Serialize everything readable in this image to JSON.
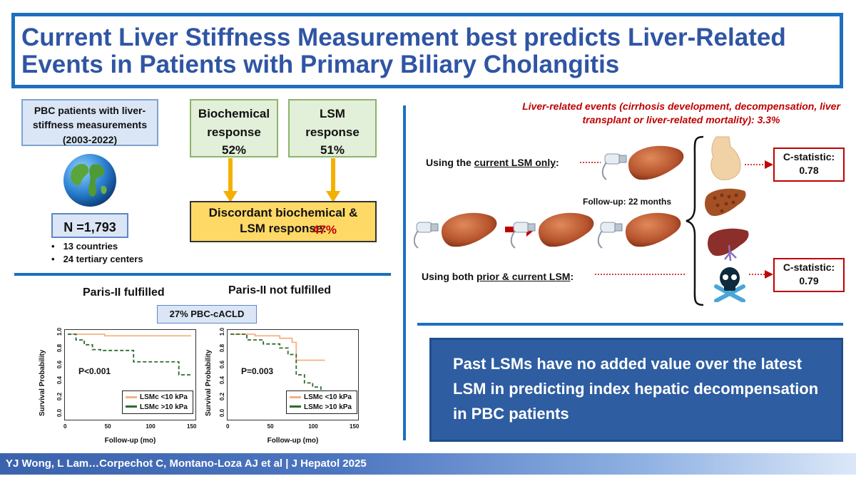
{
  "title": "Current Liver Stiffness Measurement best predicts Liver-Related Events in Patients with Primary Biliary Cholangitis",
  "cohort": {
    "description": "PBC patients with liver-stiffness measurements (2003-2022)",
    "n": "N =1,793",
    "bullets": [
      "13 countries",
      "24 tertiary centers"
    ]
  },
  "responses": {
    "biochemical": {
      "label": "Biochemical response",
      "value": "52%"
    },
    "lsm": {
      "label": "LSM response",
      "value": "51%"
    },
    "discordant_label": "Discordant biochemical & LSM response:",
    "discordant_value": "47%"
  },
  "km": {
    "left_heading": "Paris-II fulfilled",
    "right_heading": "Paris-II not fulfilled",
    "subgroup": "27% PBC-cACLD",
    "ylabel": "Survival Probability",
    "xlabel": "Follow-up (mo)",
    "yticks": [
      "0.0",
      "0.2",
      "0.4",
      "0.6",
      "0.8",
      "1.0"
    ],
    "left_xticks": [
      "0",
      "50",
      "100",
      "150"
    ],
    "right_xticks": [
      "0",
      "50",
      "100",
      "150"
    ],
    "left_p": "P<0.001",
    "right_p": "P=0.003",
    "legend_low": "LSMc <10 kPa",
    "legend_high": "LSMc >10 kPa",
    "color_low": "#f4b183",
    "color_high": "#2e6b2e"
  },
  "chart_data": [
    {
      "type": "line",
      "title": "Paris-II fulfilled",
      "xlabel": "Follow-up (mo)",
      "ylabel": "Survival Probability",
      "xlim": [
        0,
        150
      ],
      "ylim": [
        0,
        1
      ],
      "series": [
        {
          "name": "LSMc <10 kPa",
          "x": [
            0,
            45,
            150
          ],
          "y": [
            1.0,
            0.98,
            0.98
          ]
        },
        {
          "name": "LSMc >10 kPa",
          "x": [
            0,
            10,
            20,
            30,
            40,
            80,
            135,
            150
          ],
          "y": [
            1.0,
            0.93,
            0.87,
            0.81,
            0.8,
            0.66,
            0.5,
            0.5
          ]
        }
      ],
      "annotation": "P<0.001"
    },
    {
      "type": "line",
      "title": "Paris-II not fulfilled",
      "xlabel": "Follow-up (mo)",
      "ylabel": "Survival Probability",
      "xlim": [
        0,
        150
      ],
      "ylim": [
        0,
        1
      ],
      "series": [
        {
          "name": "LSMc <10 kPa",
          "x": [
            0,
            30,
            60,
            75,
            80,
            115
          ],
          "y": [
            1.0,
            0.98,
            0.95,
            0.9,
            0.68,
            0.68
          ]
        },
        {
          "name": "LSMc >10 kPa",
          "x": [
            0,
            20,
            40,
            60,
            70,
            80,
            90,
            100,
            110,
            115
          ],
          "y": [
            1.0,
            0.93,
            0.88,
            0.83,
            0.75,
            0.5,
            0.4,
            0.35,
            0.3,
            0.3
          ]
        }
      ],
      "annotation": "P=0.003"
    }
  ],
  "events": {
    "text": "Liver-related events (cirrhosis development, decompensation, liver transplant or liver-related mortality): 3.3%",
    "current_label_prefix": "Using the ",
    "current_label_underlined": "current LSM only",
    "current_label_suffix": ":",
    "both_label_prefix": "Using both ",
    "both_label_underlined": "prior & current LSM",
    "both_label_suffix": ":",
    "followup": "Follow-up: 22 months",
    "cstat_current": "C-statistic: 0.78",
    "cstat_both": "C-statistic: 0.79"
  },
  "summary": "Past LSMs have no added value over the latest LSM in predicting index hepatic decompensation in PBC patients",
  "footer": "YJ Wong, L Lam…Corpechot C, Montano-Loza AJ et al  |  J Hepatol 2025",
  "colors": {
    "accent_blue": "#1d6fc0",
    "title_blue": "#2f55a4",
    "event_red": "#c00000",
    "arrow_yellow": "#f4b000",
    "summary_blue": "#2e5da1"
  }
}
